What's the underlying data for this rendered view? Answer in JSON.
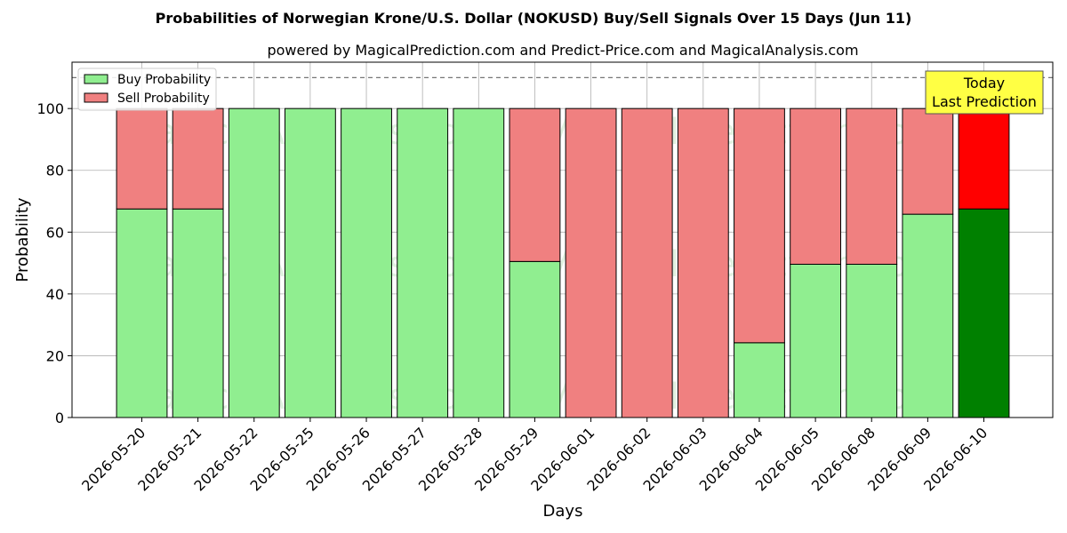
{
  "chart_data": {
    "type": "bar",
    "stacked": true,
    "title": "Probabilities of Norwegian Krone/U.S. Dollar (NOKUSD) Buy/Sell Signals Over 15 Days (Jun 11)",
    "subtitle": "powered by MagicalPrediction.com and Predict-Price.com and MagicalAnalysis.com",
    "xlabel": "Days",
    "ylabel": "Probability",
    "ylim": [
      0,
      115
    ],
    "yticks": [
      0,
      20,
      40,
      60,
      80,
      100
    ],
    "reference_line": 110,
    "grid": true,
    "legend_position": "top-left",
    "categories": [
      "2026-05-20",
      "2026-05-21",
      "2026-05-22",
      "2026-05-25",
      "2026-05-26",
      "2026-05-27",
      "2026-05-28",
      "2026-05-29",
      "2026-06-01",
      "2026-06-02",
      "2026-06-03",
      "2026-06-04",
      "2026-06-05",
      "2026-06-08",
      "2026-06-09",
      "2026-06-10"
    ],
    "series": [
      {
        "name": "Buy Probability",
        "color": "#90ee90",
        "highlight_color": "#008000",
        "values": [
          67.5,
          67.5,
          100,
          100,
          100,
          100,
          100,
          50.5,
          0,
          0,
          0,
          24.2,
          49.6,
          49.6,
          65.8,
          67.5
        ]
      },
      {
        "name": "Sell Probability",
        "color": "#f08080",
        "highlight_color": "#ff0000",
        "values": [
          32.5,
          32.5,
          0,
          0,
          0,
          0,
          0,
          49.5,
          100,
          100,
          100,
          75.8,
          50.4,
          50.4,
          34.2,
          32.5
        ]
      }
    ],
    "highlight_index": 15,
    "annotation": {
      "lines": [
        "Today",
        "Last Prediction"
      ],
      "color": "#ffff44"
    },
    "watermarks": [
      "MagicalAnalysis.com",
      "MagicalPrediction.com"
    ]
  }
}
